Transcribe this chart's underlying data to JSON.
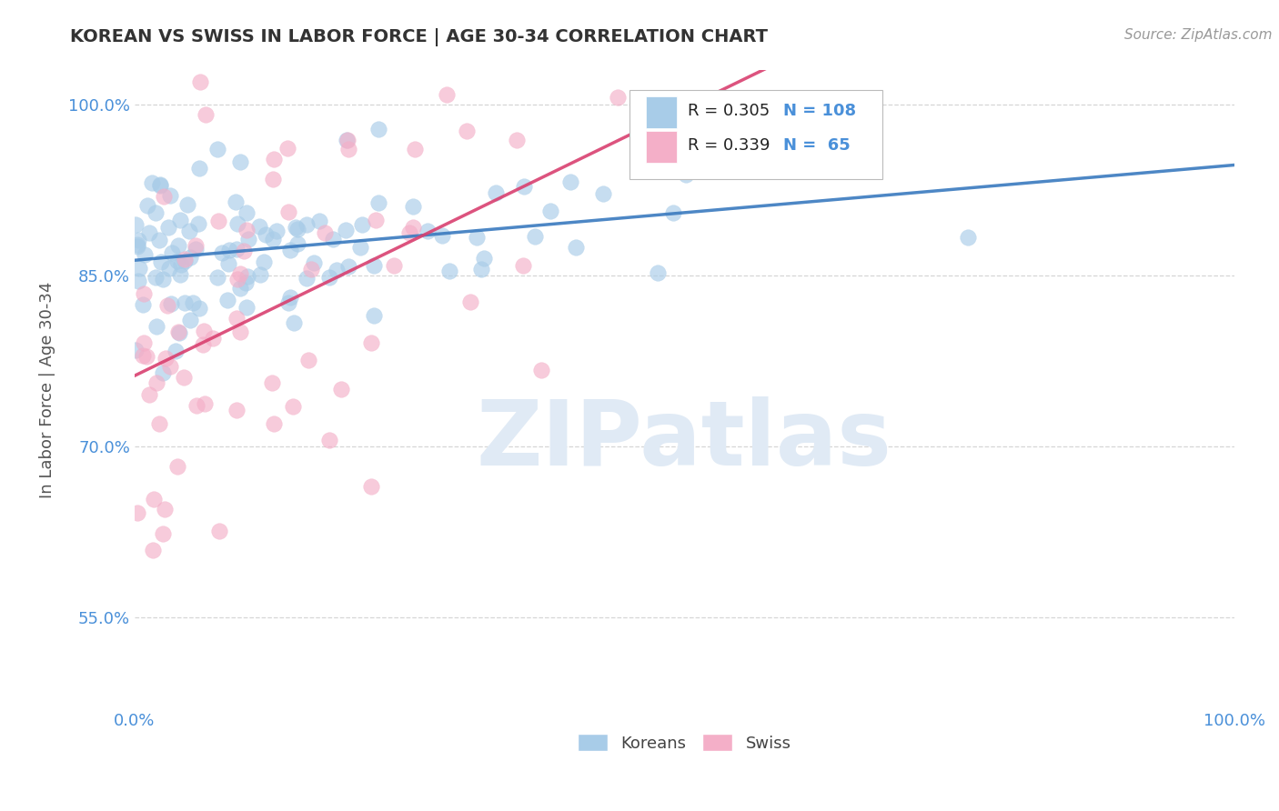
{
  "title": "KOREAN VS SWISS IN LABOR FORCE | AGE 30-34 CORRELATION CHART",
  "source_text": "Source: ZipAtlas.com",
  "ylabel": "In Labor Force | Age 30-34",
  "xlim": [
    0.0,
    1.0
  ],
  "ylim": [
    0.47,
    1.03
  ],
  "x_ticks": [
    0.0,
    0.1,
    0.2,
    0.3,
    0.4,
    0.5,
    0.6,
    0.7,
    0.8,
    0.9,
    1.0
  ],
  "y_ticks": [
    0.55,
    0.7,
    0.85,
    1.0
  ],
  "y_tick_labels": [
    "55.0%",
    "70.0%",
    "85.0%",
    "100.0%"
  ],
  "korean_R": 0.305,
  "korean_N": 108,
  "swiss_R": 0.339,
  "swiss_N": 65,
  "korean_color": "#a8cce8",
  "swiss_color": "#f4afc8",
  "korean_line_color": "#3a7abf",
  "swiss_line_color": "#d94070",
  "background_color": "#ffffff",
  "grid_color": "#cccccc",
  "title_color": "#333333",
  "axis_tick_color": "#4a90d9",
  "watermark_color": "#e0eaf5",
  "watermark_text": "ZIPatlas",
  "legend_label_korean": "Koreans",
  "legend_label_swiss": "Swiss"
}
